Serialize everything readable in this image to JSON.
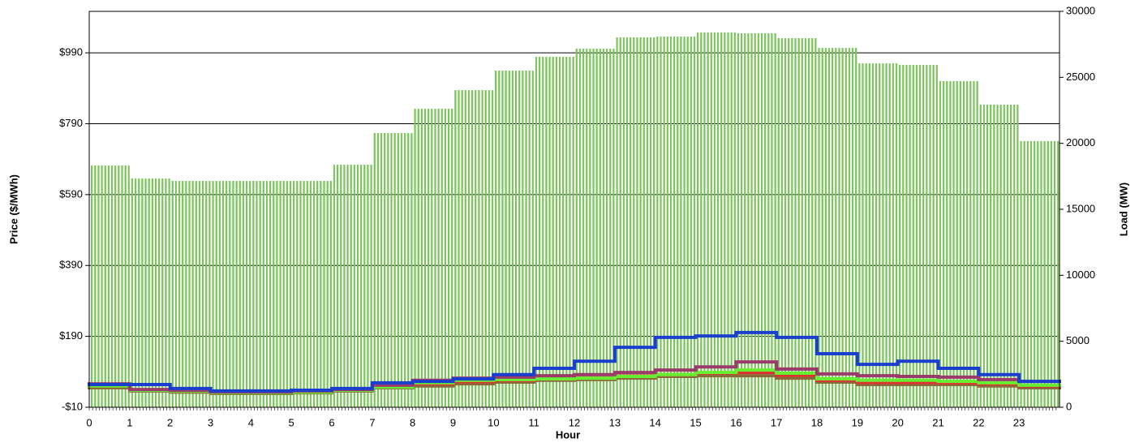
{
  "chart_data": {
    "type": "bar_line",
    "x_label": "Hour",
    "y_label": "Price ($/MWh)",
    "y2_label": "Load (MW)",
    "categories": [
      "0",
      "1",
      "2",
      "3",
      "4",
      "5",
      "6",
      "7",
      "8",
      "9",
      "10",
      "11",
      "12",
      "13",
      "14",
      "15",
      "16",
      "17",
      "18",
      "19",
      "20",
      "21",
      "22",
      "23"
    ],
    "ylim": [
      -10,
      1107
    ],
    "yticks": [
      {
        "value": -10,
        "label": "-$10"
      },
      {
        "value": 190,
        "label": "$190"
      },
      {
        "value": 390,
        "label": "$390"
      },
      {
        "value": 590,
        "label": "$590"
      },
      {
        "value": 790,
        "label": "$790"
      },
      {
        "value": 990,
        "label": "$990"
      }
    ],
    "y2lim": [
      0,
      30000
    ],
    "y2ticks": [
      0,
      5000,
      10000,
      15000,
      20000,
      25000,
      30000
    ],
    "grid": true,
    "series": [
      {
        "kind": "bar",
        "axis": "y2",
        "color": "#7ac35a",
        "values": [
          18320,
          17340,
          17150,
          17150,
          17150,
          17150,
          18380,
          20780,
          22620,
          24030,
          25510,
          26560,
          27170,
          28030,
          28090,
          28400,
          28340,
          27970,
          27230,
          26060,
          25940,
          24710,
          22930,
          20170
        ]
      },
      {
        "kind": "line",
        "color": "#8b6a3a",
        "values": [
          45,
          36,
          33,
          29,
          29,
          31,
          36,
          45,
          50,
          56,
          61,
          66,
          68,
          72,
          77,
          79,
          79,
          72,
          61,
          54,
          54,
          54,
          50,
          45
        ]
      },
      {
        "kind": "line",
        "color": "#e03030",
        "values": [
          50,
          39,
          36,
          32,
          32,
          34,
          39,
          49,
          56,
          62,
          66,
          70,
          73,
          78,
          82,
          86,
          88,
          80,
          66,
          60,
          60,
          59,
          56,
          50
        ]
      },
      {
        "kind": "line",
        "color": "#66ee33",
        "values": [
          50,
          38,
          36,
          31,
          31,
          33,
          38,
          47,
          59,
          66,
          68,
          70,
          72,
          77,
          82,
          88,
          95,
          86,
          70,
          66,
          66,
          63,
          59,
          52
        ]
      },
      {
        "kind": "line",
        "color": "#9b3b6b",
        "values": [
          56,
          40,
          38,
          33,
          33,
          36,
          40,
          52,
          66,
          72,
          75,
          79,
          82,
          88,
          95,
          104,
          118,
          98,
          84,
          79,
          77,
          75,
          68,
          63
        ]
      },
      {
        "kind": "line",
        "color": "#1a3fcf",
        "values": [
          54,
          54,
          43,
          36,
          36,
          38,
          43,
          59,
          63,
          70,
          82,
          100,
          120,
          159,
          187,
          191,
          201,
          187,
          141,
          111,
          120,
          100,
          82,
          63
        ]
      }
    ]
  }
}
